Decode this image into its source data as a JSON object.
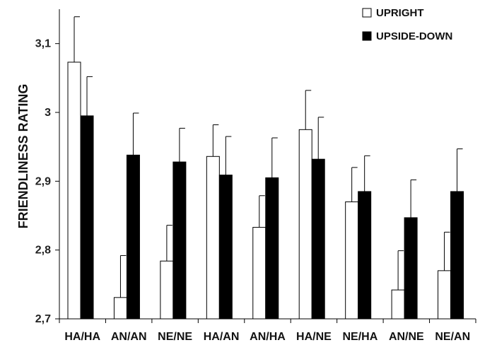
{
  "chart_data": {
    "type": "bar",
    "title": "",
    "xlabel": "",
    "ylabel": "FRIENDLINESS RATING",
    "ylim": [
      2.7,
      3.15
    ],
    "yticks": [
      2.7,
      2.8,
      2.9,
      3.0,
      3.1
    ],
    "ytick_labels": [
      "2,7",
      "2,8",
      "2,9",
      "3",
      "3,1"
    ],
    "grid": false,
    "legend_position": "top-right",
    "categories": [
      "HA/HA",
      "AN/AN",
      "NE/NE",
      "HA/AN",
      "AN/HA",
      "HA/NE",
      "NE/HA",
      "AN/NE",
      "NE/AN"
    ],
    "series": [
      {
        "name": "UPRIGHT",
        "color": "#ffffff",
        "values": [
          3.073,
          2.731,
          2.784,
          2.936,
          2.833,
          2.975,
          2.87,
          2.742,
          2.77
        ],
        "errors": [
          0.066,
          0.061,
          0.052,
          0.046,
          0.046,
          0.057,
          0.05,
          0.057,
          0.056
        ]
      },
      {
        "name": "UPSIDE-DOWN",
        "color": "#000000",
        "values": [
          2.995,
          2.938,
          2.928,
          2.909,
          2.905,
          2.932,
          2.885,
          2.847,
          2.885
        ],
        "errors": [
          0.057,
          0.061,
          0.049,
          0.056,
          0.058,
          0.061,
          0.052,
          0.055,
          0.062
        ]
      }
    ]
  }
}
